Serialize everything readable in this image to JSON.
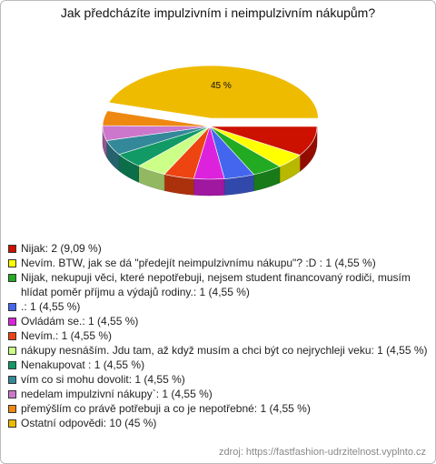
{
  "chart_data": {
    "type": "pie",
    "title": "Jak předcházíte impulzivním i neimpulzivním nákupům?",
    "categories": [
      "Nijak: 2 (9,09 %)",
      "Nevím. BTW, jak se dá \"předejít neimpulzivnímu nákupu\"? :D : 1 (4,55 %)",
      "Nijak, nekupuji věci, které nepotřebuji, nejsem student financovaný rodiči, musím hlídat poměr příjmu a výdajů rodiny.: 1 (4,55 %)",
      ".: 1 (4,55 %)",
      "Ovládám se.: 1 (4,55 %)",
      "Nevím.: 1 (4,55 %)",
      "nákupy nesnáším. Jdu tam, až když musím a chci být co nejrychleji veku: 1 (4,55 %)",
      "Nenakupovat : 1 (4,55 %)",
      "vím co si mohu dovolit: 1 (4,55 %)",
      "nedelam impulzivní nákupy`: 1 (4,55 %)",
      "přemýšlím co právě potřebuji a co je nepotřebné: 1 (4,55 %)",
      "Ostatní odpovědi: 10 (45 %)"
    ],
    "values": [
      9.09,
      4.55,
      4.55,
      4.55,
      4.55,
      4.55,
      4.55,
      4.55,
      4.55,
      4.55,
      4.55,
      45
    ],
    "value_labels": [
      null,
      null,
      null,
      null,
      null,
      null,
      null,
      null,
      null,
      null,
      null,
      "45 %"
    ],
    "colors": [
      "#cc1100",
      "#ffff00",
      "#22aa22",
      "#4466ee",
      "#dd22dd",
      "#ee4411",
      "#ccff88",
      "#119966",
      "#338899",
      "#cc77cc",
      "#ee8811",
      "#eebb00"
    ],
    "exploded": [
      11
    ],
    "legend": "bottom",
    "source": "zdroj: https://fastfashion-udrzitelnost.vyplnto.cz"
  }
}
